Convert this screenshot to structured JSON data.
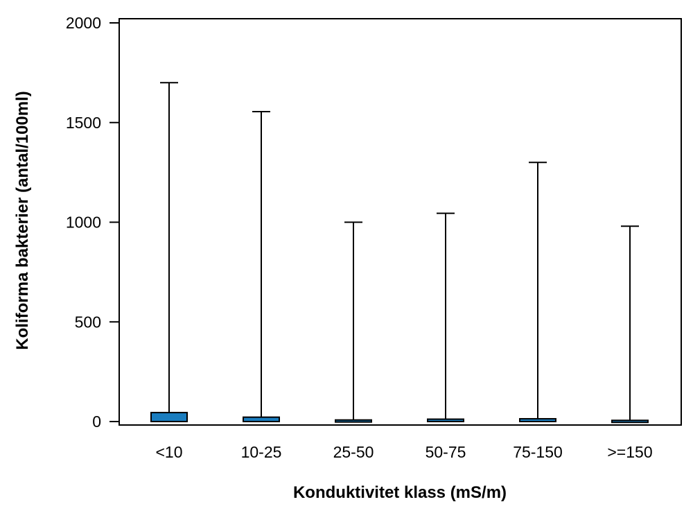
{
  "chart_data": {
    "type": "boxplot",
    "title": "",
    "xlabel": "Konduktivitet klass (mS/m)",
    "ylabel": "Koliforma bakterier (antal/100ml)",
    "ylim": [
      0,
      2000
    ],
    "yticks": [
      0,
      500,
      1000,
      1500,
      2000
    ],
    "grid": false,
    "box_color": "#1a7dbf",
    "categories": [
      "<10",
      "10-25",
      "25-50",
      "50-75",
      "75-150",
      ">=150"
    ],
    "boxes": [
      {
        "category": "<10",
        "min": 0,
        "q1": 0,
        "q3": 45,
        "max": 1700
      },
      {
        "category": "10-25",
        "min": 0,
        "q1": 0,
        "q3": 22,
        "max": 1555
      },
      {
        "category": "25-50",
        "min": 0,
        "q1": 0,
        "q3": 8,
        "max": 1000
      },
      {
        "category": "50-75",
        "min": 0,
        "q1": 0,
        "q3": 12,
        "max": 1045
      },
      {
        "category": "75-150",
        "min": 0,
        "q1": 0,
        "q3": 14,
        "max": 1300
      },
      {
        "category": ">=150",
        "min": 0,
        "q1": 0,
        "q3": 6,
        "max": 980
      }
    ]
  }
}
